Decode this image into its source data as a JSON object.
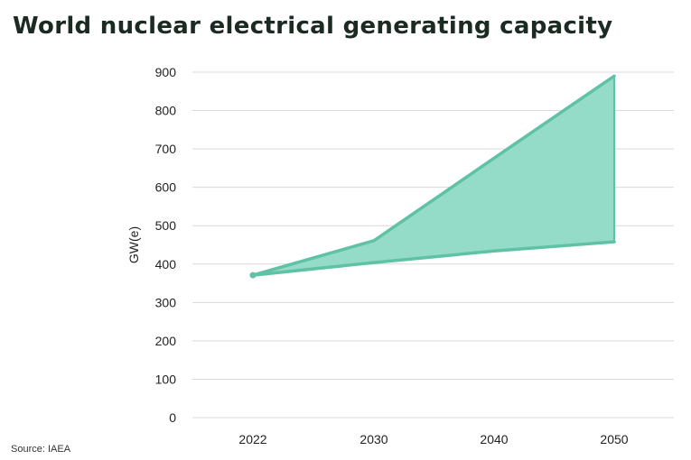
{
  "title": "World nuclear electrical generating capacity",
  "source": "Source: IAEA",
  "colors": {
    "fill": "#94dcc8",
    "line": "#5fc2a5",
    "grid": "#d9d9d9",
    "text": "#222222"
  },
  "chart_data": {
    "type": "area",
    "title": "World nuclear electrical generating capacity",
    "xlabel": "",
    "ylabel": "GW(e)",
    "x": [
      "2022",
      "2030",
      "2040",
      "2050"
    ],
    "ylim": [
      0,
      900
    ],
    "yticks": [
      0,
      100,
      200,
      300,
      400,
      500,
      600,
      700,
      800,
      900
    ],
    "grid": true,
    "legend": "none",
    "series": [
      {
        "values": [
          371,
          461,
          676,
          890
        ]
      },
      {
        "values": [
          371,
          404,
          434,
          458
        ]
      }
    ]
  }
}
